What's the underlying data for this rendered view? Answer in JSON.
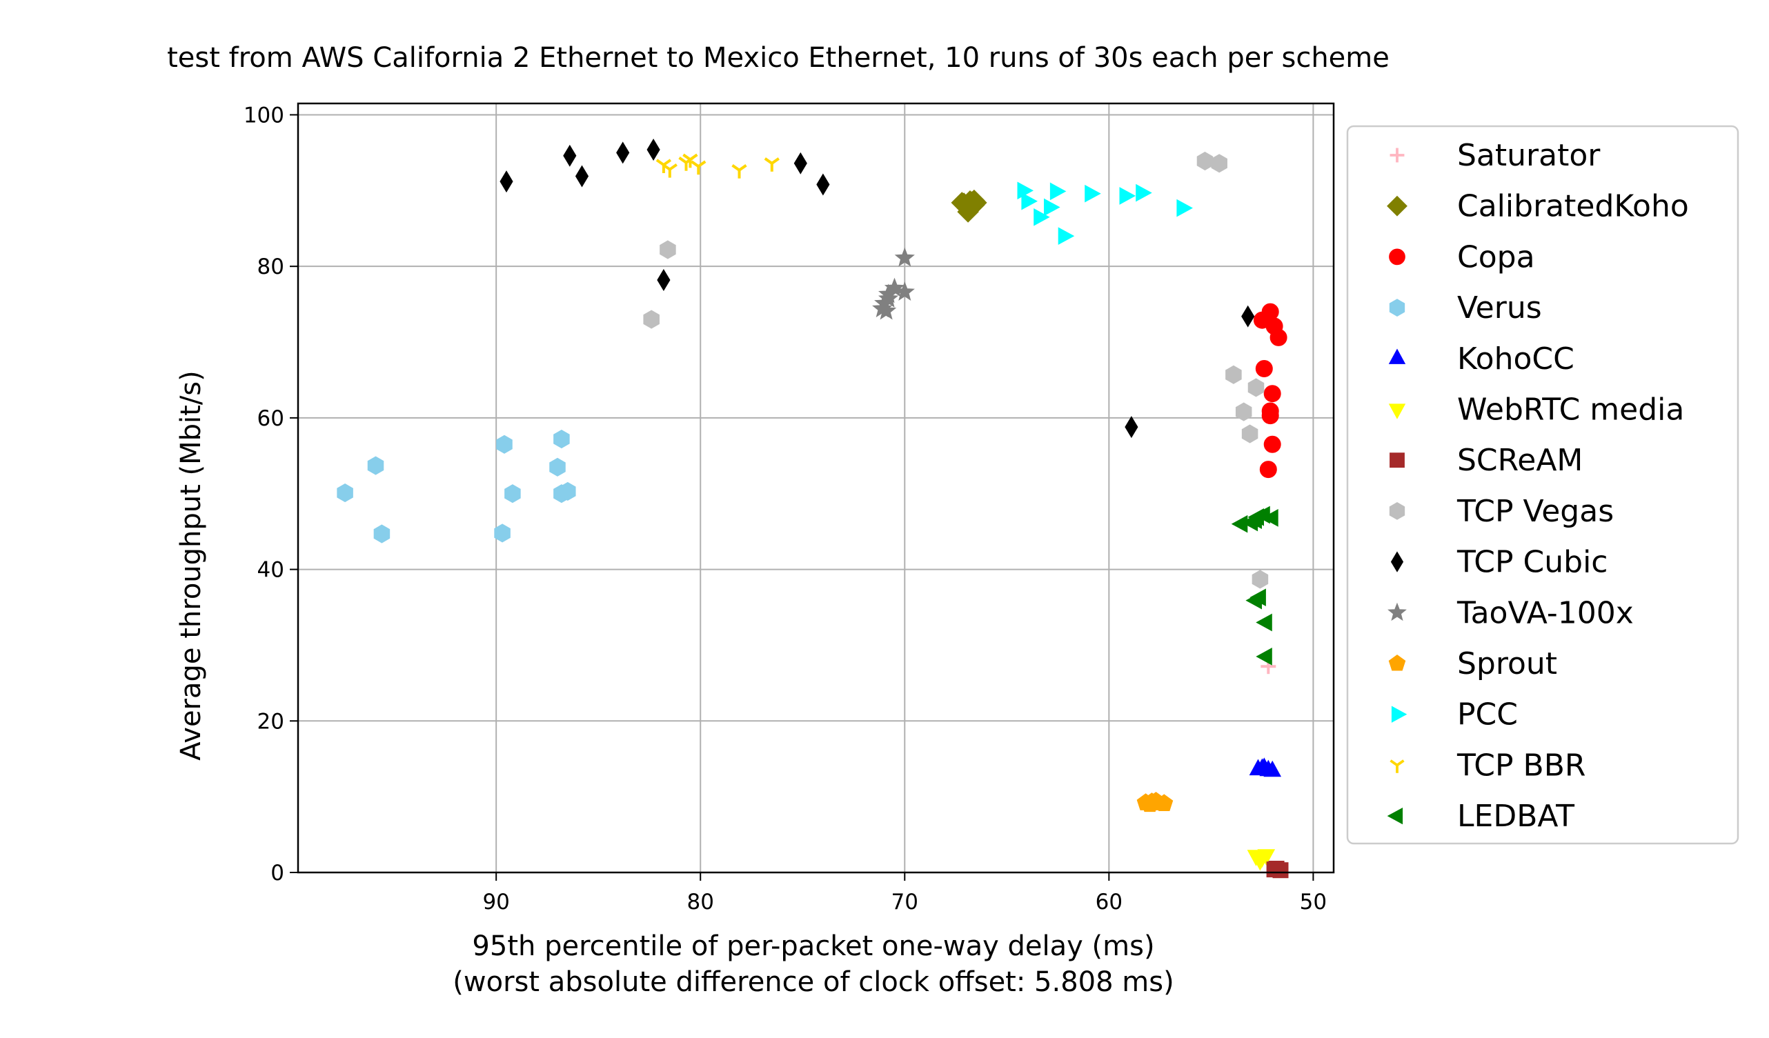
{
  "chart_data": {
    "type": "scatter",
    "title": "test from AWS California 2 Ethernet to Mexico Ethernet, 10 runs of 30s each per scheme",
    "xlabel_line1": "95th percentile of per-packet one-way delay (ms)",
    "xlabel_line2": "(worst absolute difference of clock offset: 5.808 ms)",
    "ylabel": "Average throughput (Mbit/s)",
    "xlim": [
      99.7,
      49.0
    ],
    "ylim": [
      0,
      101.5
    ],
    "x_inverted": true,
    "xticks": [
      90,
      80,
      70,
      60,
      50
    ],
    "yticks": [
      0,
      20,
      40,
      60,
      80,
      100
    ],
    "grid": true,
    "legend_position": "outside-right",
    "series": [
      {
        "name": "Saturator",
        "color": "#ffb6c1",
        "marker": "plus",
        "points": [
          [
            52.2,
            27.2
          ]
        ]
      },
      {
        "name": "CalibratedKoho",
        "color": "#808000",
        "marker": "diamond-wide",
        "points": [
          [
            67.1,
            88.3
          ],
          [
            66.8,
            88.6
          ],
          [
            66.6,
            88.1
          ],
          [
            66.9,
            87.2
          ],
          [
            66.7,
            88.5
          ],
          [
            67.0,
            88.0
          ],
          [
            66.5,
            88.4
          ],
          [
            66.8,
            87.6
          ],
          [
            66.6,
            88.7
          ],
          [
            67.2,
            88.4
          ]
        ]
      },
      {
        "name": "Copa",
        "color": "#ff0000",
        "marker": "circle",
        "points": [
          [
            52.1,
            74.0
          ],
          [
            52.5,
            72.9
          ],
          [
            51.9,
            72.1
          ],
          [
            51.7,
            70.6
          ],
          [
            52.4,
            66.5
          ],
          [
            52.0,
            63.2
          ],
          [
            52.1,
            60.9
          ],
          [
            52.1,
            60.3
          ],
          [
            52.2,
            53.2
          ],
          [
            52.0,
            56.5
          ]
        ]
      },
      {
        "name": "Verus",
        "color": "#87ceeb",
        "marker": "hexagon",
        "points": [
          [
            97.4,
            50.1
          ],
          [
            95.9,
            53.7
          ],
          [
            95.6,
            44.7
          ],
          [
            89.6,
            56.5
          ],
          [
            89.2,
            50.0
          ],
          [
            89.7,
            44.8
          ],
          [
            86.8,
            57.2
          ],
          [
            87.0,
            53.5
          ],
          [
            86.8,
            50.0
          ],
          [
            86.5,
            50.3
          ]
        ]
      },
      {
        "name": "KohoCC",
        "color": "#0000ff",
        "marker": "triangle-up",
        "points": [
          [
            52.7,
            13.6
          ],
          [
            52.4,
            13.8
          ],
          [
            52.2,
            13.5
          ],
          [
            52.0,
            13.4
          ],
          [
            52.5,
            13.7
          ]
        ]
      },
      {
        "name": "WebRTC media",
        "color": "#ffff00",
        "marker": "triangle-down",
        "points": [
          [
            52.8,
            2.2
          ],
          [
            52.5,
            2.0
          ],
          [
            52.3,
            2.3
          ],
          [
            52.6,
            1.6
          ]
        ]
      },
      {
        "name": "SCReAM",
        "color": "#a52a2a",
        "marker": "square",
        "points": [
          [
            51.9,
            0.4
          ],
          [
            51.6,
            0.3
          ],
          [
            51.8,
            0.5
          ]
        ]
      },
      {
        "name": "TCP Vegas",
        "color": "#bebebe",
        "marker": "hexagon",
        "points": [
          [
            81.6,
            82.2
          ],
          [
            82.4,
            73.0
          ],
          [
            55.3,
            93.9
          ],
          [
            54.6,
            93.6
          ],
          [
            53.9,
            65.7
          ],
          [
            52.8,
            64.0
          ],
          [
            53.4,
            60.8
          ],
          [
            53.1,
            57.9
          ],
          [
            52.6,
            38.7
          ]
        ]
      },
      {
        "name": "TCP Cubic",
        "color": "#000000",
        "marker": "thin-diamond",
        "points": [
          [
            89.5,
            91.2
          ],
          [
            86.4,
            94.6
          ],
          [
            85.8,
            91.9
          ],
          [
            83.8,
            95.0
          ],
          [
            82.3,
            95.4
          ],
          [
            81.8,
            78.2
          ],
          [
            75.1,
            93.6
          ],
          [
            74.0,
            90.8
          ],
          [
            58.9,
            58.8
          ],
          [
            53.2,
            73.4
          ]
        ]
      },
      {
        "name": "TaoVA-100x",
        "color": "#808080",
        "marker": "star",
        "points": [
          [
            70.0,
            81.1
          ],
          [
            70.5,
            77.1
          ],
          [
            70.0,
            76.6
          ],
          [
            70.8,
            76.3
          ],
          [
            71.0,
            75.1
          ],
          [
            70.9,
            74.1
          ],
          [
            70.8,
            75.7
          ],
          [
            71.1,
            74.4
          ]
        ]
      },
      {
        "name": "Sprout",
        "color": "#ffa500",
        "marker": "pentagon",
        "points": [
          [
            58.2,
            9.2
          ],
          [
            57.9,
            9.3
          ],
          [
            57.6,
            9.2
          ],
          [
            57.3,
            9.1
          ],
          [
            58.0,
            9.0
          ],
          [
            57.7,
            9.4
          ]
        ]
      },
      {
        "name": "PCC",
        "color": "#00ffff",
        "marker": "triangle-right",
        "points": [
          [
            64.2,
            90.0
          ],
          [
            64.0,
            88.6
          ],
          [
            62.9,
            87.8
          ],
          [
            62.6,
            89.9
          ],
          [
            63.4,
            86.5
          ],
          [
            62.2,
            84.0
          ],
          [
            60.9,
            89.6
          ],
          [
            59.2,
            89.3
          ],
          [
            58.4,
            89.7
          ],
          [
            56.4,
            87.7
          ]
        ]
      },
      {
        "name": "TCP BBR",
        "color": "#ffd700",
        "marker": "tri-down",
        "points": [
          [
            81.8,
            93.4
          ],
          [
            80.7,
            93.7
          ],
          [
            80.1,
            93.2
          ],
          [
            78.1,
            92.7
          ],
          [
            76.5,
            93.6
          ],
          [
            81.5,
            92.8
          ],
          [
            80.5,
            94.1
          ]
        ]
      },
      {
        "name": "LEDBAT",
        "color": "#008000",
        "marker": "triangle-left",
        "points": [
          [
            53.5,
            46.0
          ],
          [
            52.8,
            46.5
          ],
          [
            52.4,
            47.2
          ],
          [
            52.0,
            46.8
          ],
          [
            53.0,
            46.2
          ],
          [
            52.6,
            36.3
          ],
          [
            52.8,
            35.9
          ],
          [
            52.3,
            33.0
          ],
          [
            52.3,
            28.5
          ],
          [
            52.7,
            46.9
          ]
        ]
      }
    ]
  }
}
